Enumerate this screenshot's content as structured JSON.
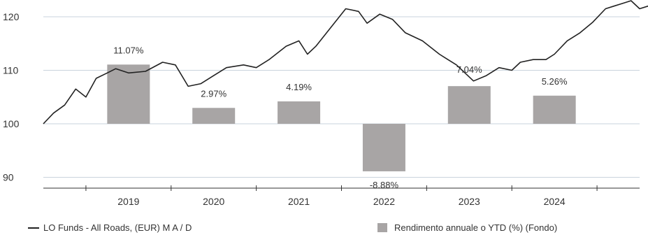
{
  "chart_data": {
    "type": "bar+line",
    "colors": {
      "bar": "#a8a5a5",
      "line": "#222222",
      "grid": "#c9d3dc",
      "text": "#333333"
    },
    "y_axis": {
      "ylim": [
        88,
        124
      ],
      "ticks": [
        90,
        100,
        110,
        120
      ],
      "tick_labels": [
        "90",
        "100",
        "110",
        "120"
      ]
    },
    "x_axis": {
      "xlim": [
        2018.0,
        2025.0
      ],
      "categories": [
        "2019",
        "2020",
        "2021",
        "2022",
        "2023",
        "2024"
      ]
    },
    "bars": {
      "name": "Rendimento annuale o YTD (%) (Fondo)",
      "categories": [
        "2019",
        "2020",
        "2021",
        "2022",
        "2023",
        "2024"
      ],
      "values": [
        11.07,
        2.97,
        4.19,
        -8.88,
        7.04,
        5.26
      ],
      "labels": [
        "11.07%",
        "2.97%",
        "4.19%",
        "-8.88%",
        "7.04%",
        "5.26%"
      ]
    },
    "line": {
      "name": "LO Funds - All Roads, (EUR) M A / D",
      "points": [
        [
          2018.0,
          100.0
        ],
        [
          2018.12,
          102.0
        ],
        [
          2018.25,
          103.5
        ],
        [
          2018.38,
          106.5
        ],
        [
          2018.5,
          105.0
        ],
        [
          2018.62,
          108.5
        ],
        [
          2018.75,
          109.5
        ],
        [
          2018.85,
          110.3
        ],
        [
          2019.0,
          109.5
        ],
        [
          2019.2,
          109.8
        ],
        [
          2019.4,
          111.5
        ],
        [
          2019.55,
          111.0
        ],
        [
          2019.7,
          107.0
        ],
        [
          2019.85,
          107.5
        ],
        [
          2020.0,
          109.0
        ],
        [
          2020.15,
          110.5
        ],
        [
          2020.35,
          111.0
        ],
        [
          2020.5,
          110.5
        ],
        [
          2020.65,
          112.0
        ],
        [
          2020.85,
          114.5
        ],
        [
          2021.0,
          115.5
        ],
        [
          2021.1,
          113.0
        ],
        [
          2021.2,
          114.5
        ],
        [
          2021.35,
          117.5
        ],
        [
          2021.55,
          121.5
        ],
        [
          2021.7,
          121.0
        ],
        [
          2021.8,
          118.8
        ],
        [
          2021.95,
          120.5
        ],
        [
          2022.1,
          119.5
        ],
        [
          2022.25,
          117.0
        ],
        [
          2022.45,
          115.5
        ],
        [
          2022.65,
          113.0
        ],
        [
          2022.75,
          112.0
        ],
        [
          2022.85,
          111.0
        ],
        [
          2022.95,
          109.5
        ],
        [
          2023.05,
          108.0
        ],
        [
          2023.2,
          109.0
        ],
        [
          2023.35,
          110.5
        ],
        [
          2023.5,
          110.0
        ],
        [
          2023.6,
          111.5
        ],
        [
          2023.75,
          112.0
        ],
        [
          2023.9,
          112.0
        ],
        [
          2024.0,
          113.0
        ],
        [
          2024.15,
          115.5
        ],
        [
          2024.3,
          117.0
        ],
        [
          2024.45,
          119.0
        ],
        [
          2024.6,
          121.5
        ],
        [
          2024.7,
          122.0
        ],
        [
          2024.8,
          122.5
        ],
        [
          2024.9,
          123.0
        ],
        [
          2025.0,
          121.5
        ],
        [
          2025.1,
          122.0
        ]
      ]
    }
  },
  "legend": {
    "line_label": "LO Funds - All Roads, (EUR) M A / D",
    "bar_label": "Rendimento annuale o YTD (%) (Fondo)"
  }
}
